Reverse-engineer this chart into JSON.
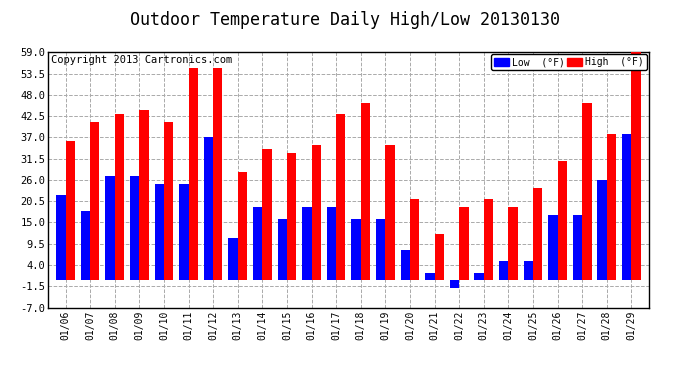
{
  "title": "Outdoor Temperature Daily High/Low 20130130",
  "copyright": "Copyright 2013 Cartronics.com",
  "legend_low": "Low  (°F)",
  "legend_high": "High  (°F)",
  "dates": [
    "01/06",
    "01/07",
    "01/08",
    "01/09",
    "01/10",
    "01/11",
    "01/12",
    "01/13",
    "01/14",
    "01/15",
    "01/16",
    "01/17",
    "01/18",
    "01/19",
    "01/20",
    "01/21",
    "01/22",
    "01/23",
    "01/24",
    "01/25",
    "01/26",
    "01/27",
    "01/28",
    "01/29"
  ],
  "high": [
    36,
    41,
    43,
    44,
    41,
    55,
    55,
    28,
    34,
    33,
    35,
    43,
    46,
    35,
    21,
    12,
    19,
    21,
    19,
    24,
    31,
    46,
    38,
    59
  ],
  "low": [
    22,
    18,
    27,
    27,
    25,
    25,
    37,
    11,
    19,
    16,
    19,
    19,
    16,
    16,
    8,
    2,
    -2,
    2,
    5,
    5,
    17,
    17,
    26,
    38
  ],
  "ylim": [
    -7.0,
    59.0
  ],
  "yticks": [
    -7.0,
    -1.5,
    4.0,
    9.5,
    15.0,
    20.5,
    26.0,
    31.5,
    37.0,
    42.5,
    48.0,
    53.5,
    59.0
  ],
  "bar_width": 0.38,
  "color_low": "#0000ff",
  "color_high": "#ff0000",
  "background_color": "#ffffff",
  "grid_color": "#aaaaaa",
  "title_fontsize": 12,
  "copyright_fontsize": 7.5
}
